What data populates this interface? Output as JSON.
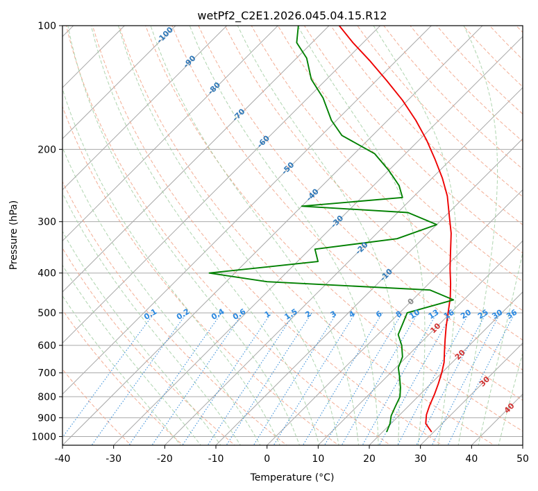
{
  "chart_data": {
    "type": "line",
    "title": "wetPf2_C2E1.2026.045.04.15.R12",
    "xlabel": "Temperature (°C)",
    "ylabel": "Pressure (hPa)",
    "xlim": [
      -40,
      50
    ],
    "ylim": [
      1050,
      100
    ],
    "y_scale": "log",
    "grid": true,
    "x_ticks": [
      "-40",
      "-30",
      "-20",
      "-10",
      "0",
      "10",
      "20",
      "30",
      "40",
      "50"
    ],
    "y_ticks": [
      "100",
      "200",
      "300",
      "400",
      "500",
      "600",
      "700",
      "800",
      "900",
      "1000"
    ],
    "series": [
      {
        "role": "temperature",
        "color": "#ee0000",
        "points": [
          [
            29.6,
            975
          ],
          [
            26.8,
            930
          ],
          [
            25.2,
            885
          ],
          [
            24.0,
            840
          ],
          [
            22.8,
            790
          ],
          [
            21.5,
            745
          ],
          [
            20.0,
            700
          ],
          [
            18.4,
            660
          ],
          [
            16.3,
            620
          ],
          [
            14.1,
            580
          ],
          [
            11.8,
            540
          ],
          [
            9.5,
            500
          ],
          [
            7.0,
            460
          ],
          [
            4.3,
            425
          ],
          [
            1.2,
            390
          ],
          [
            -2.0,
            355
          ],
          [
            -5.5,
            320
          ],
          [
            -9.3,
            290
          ],
          [
            -13.5,
            260
          ],
          [
            -18.0,
            235
          ],
          [
            -23.0,
            212
          ],
          [
            -28.5,
            190
          ],
          [
            -34.5,
            170
          ],
          [
            -41.0,
            152
          ],
          [
            -48.0,
            136
          ],
          [
            -55.0,
            122
          ],
          [
            -62.0,
            110
          ],
          [
            -68.0,
            100
          ]
        ]
      },
      {
        "role": "dewpoint",
        "color": "#008000",
        "points": [
          [
            20.8,
            975
          ],
          [
            19.8,
            930
          ],
          [
            18.5,
            890
          ],
          [
            17.5,
            845
          ],
          [
            16.5,
            800
          ],
          [
            14.8,
            760
          ],
          [
            12.5,
            715
          ],
          [
            10.5,
            680
          ],
          [
            9.2,
            640
          ],
          [
            6.8,
            600
          ],
          [
            4.0,
            565
          ],
          [
            2.5,
            525
          ],
          [
            1.5,
            500
          ],
          [
            8.0,
            465
          ],
          [
            1.5,
            440
          ],
          [
            -32.0,
            420
          ],
          [
            -45.0,
            400
          ],
          [
            -26.0,
            375
          ],
          [
            -29.0,
            350
          ],
          [
            -15.0,
            330
          ],
          [
            -10.0,
            305
          ],
          [
            -18.0,
            285
          ],
          [
            -40.0,
            275
          ],
          [
            -22.0,
            262
          ],
          [
            -25.0,
            245
          ],
          [
            -30.0,
            225
          ],
          [
            -36.0,
            205
          ],
          [
            -46.0,
            185
          ],
          [
            -51.0,
            170
          ],
          [
            -57.0,
            150
          ],
          [
            -63.0,
            135
          ],
          [
            -68.0,
            120
          ],
          [
            -73.0,
            110
          ],
          [
            -76.0,
            100
          ]
        ]
      }
    ],
    "mixing_ratio_labels": [
      "0.1",
      "0.2",
      "0.4",
      "0.6",
      "1",
      "1.5",
      "2",
      "3",
      "4",
      "6",
      "8",
      "10",
      "13",
      "16",
      "20",
      "25",
      "30",
      "36"
    ],
    "dry_adiabat_labels": [
      "-100",
      "-90",
      "-80",
      "-70",
      "-60",
      "-50",
      "-40",
      "-30",
      "-20",
      "-10",
      "0",
      "10",
      "20",
      "30",
      "40"
    ]
  }
}
